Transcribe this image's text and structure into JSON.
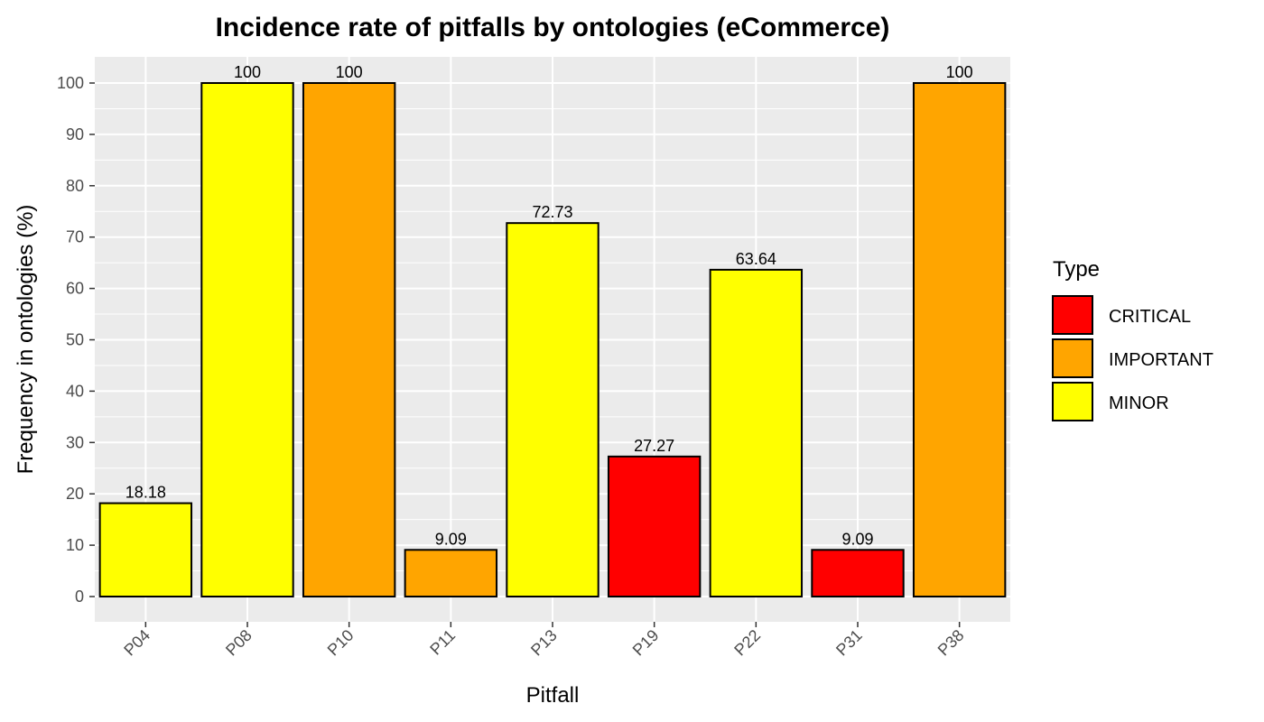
{
  "chart_data": {
    "type": "bar",
    "title": "Incidence rate of pitfalls by ontologies (eCommerce)",
    "xlabel": "Pitfall",
    "ylabel": "Frequency in ontologies (%)",
    "ylim": [
      0,
      105
    ],
    "yticks": [
      0,
      10,
      20,
      30,
      40,
      50,
      60,
      70,
      80,
      90,
      100
    ],
    "grid": true,
    "legend_position": "right",
    "categories": [
      "P04",
      "P08",
      "P10",
      "P11",
      "P13",
      "P19",
      "P22",
      "P31",
      "P38"
    ],
    "values": [
      18.18,
      100,
      100,
      9.09,
      72.73,
      27.27,
      63.64,
      9.09,
      100
    ],
    "value_labels": [
      "18.18",
      "100",
      "100",
      "9.09",
      "72.73",
      "27.27",
      "63.64",
      "9.09",
      "100"
    ],
    "types": [
      "MINOR",
      "MINOR",
      "IMPORTANT",
      "IMPORTANT",
      "MINOR",
      "CRITICAL",
      "MINOR",
      "CRITICAL",
      "IMPORTANT"
    ],
    "legend": {
      "title": "Type",
      "entries": [
        {
          "label": "CRITICAL",
          "color": "#ff0000"
        },
        {
          "label": "IMPORTANT",
          "color": "#ffa500"
        },
        {
          "label": "MINOR",
          "color": "#ffff00"
        }
      ]
    },
    "colors": {
      "panel_background": "#ebebeb",
      "grid": "#ffffff",
      "bar_outline": "#000000"
    }
  }
}
